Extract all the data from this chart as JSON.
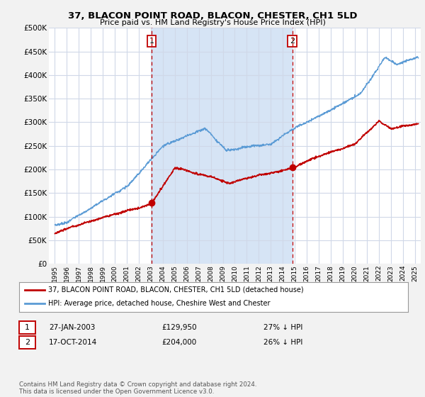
{
  "title": "37, BLACON POINT ROAD, BLACON, CHESTER, CH1 5LD",
  "subtitle": "Price paid vs. HM Land Registry's House Price Index (HPI)",
  "legend_line1": "37, BLACON POINT ROAD, BLACON, CHESTER, CH1 5LD (detached house)",
  "legend_line2": "HPI: Average price, detached house, Cheshire West and Chester",
  "footer": "Contains HM Land Registry data © Crown copyright and database right 2024.\nThis data is licensed under the Open Government Licence v3.0.",
  "sale1_date": "27-JAN-2003",
  "sale1_price": "£129,950",
  "sale1_hpi": "27% ↓ HPI",
  "sale2_date": "17-OCT-2014",
  "sale2_price": "£204,000",
  "sale2_hpi": "26% ↓ HPI",
  "sale1_x": 2003.07,
  "sale2_x": 2014.79,
  "sale1_y": 129950,
  "sale2_y": 204000,
  "hpi_color": "#5b9bd5",
  "price_color": "#c00000",
  "vline_color": "#c00000",
  "shade_color": "#d6e4f5",
  "bg_color": "#f2f2f2",
  "plot_bg": "#ffffff",
  "grid_color": "#d0d8e8",
  "ylim": [
    0,
    500000
  ],
  "yticks": [
    0,
    50000,
    100000,
    150000,
    200000,
    250000,
    300000,
    350000,
    400000,
    450000,
    500000
  ],
  "xlim_start": 1994.5,
  "xlim_end": 2025.5,
  "xtick_years": [
    1995,
    1996,
    1997,
    1998,
    1999,
    2000,
    2001,
    2002,
    2003,
    2004,
    2005,
    2006,
    2007,
    2008,
    2009,
    2010,
    2011,
    2012,
    2013,
    2014,
    2015,
    2016,
    2017,
    2018,
    2019,
    2020,
    2021,
    2022,
    2023,
    2024,
    2025
  ]
}
